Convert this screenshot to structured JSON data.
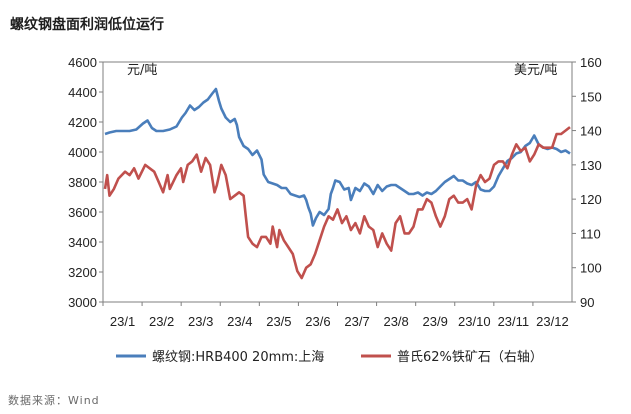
{
  "title": "螺纹钢盘面利润低位运行",
  "source": "数据来源：Wind",
  "chart_data": {
    "type": "line",
    "left_unit": "元/吨",
    "right_unit": "美元/吨",
    "ylim_left": [
      3000,
      4600
    ],
    "ylim_right": [
      90,
      160
    ],
    "y_ticks_left": [
      "3000",
      "3200",
      "3400",
      "3600",
      "3800",
      "4000",
      "4200",
      "4400",
      "4600"
    ],
    "y_ticks_right": [
      "90",
      "100",
      "110",
      "120",
      "130",
      "140",
      "150",
      "160"
    ],
    "x_ticks": [
      "23/1",
      "23/2",
      "23/3",
      "23/4",
      "23/5",
      "23/6",
      "23/7",
      "23/8",
      "23/9",
      "23/10",
      "23/11",
      "23/12"
    ],
    "grid": false,
    "legend_position": "bottom",
    "series": [
      {
        "name": "螺纹钢:HRB400 20mm:上海",
        "axis": "left",
        "color": "#4a7ebb",
        "values": [
          4120,
          4130,
          4140,
          4140,
          4140,
          4150,
          4190,
          4210,
          4160,
          4140,
          4140,
          4150,
          4170,
          4230,
          4260,
          4310,
          4280,
          4300,
          4330,
          4350,
          4390,
          4420,
          4340,
          4290,
          4230,
          4200,
          4220,
          4180,
          4100,
          4040,
          4020,
          3980,
          4010,
          3950,
          3850,
          3800,
          3790,
          3780,
          3760,
          3760,
          3720,
          3710,
          3700,
          3710,
          3680,
          3630,
          3590,
          3510,
          3560,
          3600,
          3580,
          3620,
          3720,
          3760,
          3810,
          3800,
          3750,
          3760,
          3680,
          3760,
          3740,
          3790,
          3770,
          3720,
          3780,
          3740,
          3770,
          3780,
          3780,
          3760,
          3740,
          3720,
          3720,
          3730,
          3710,
          3730,
          3720,
          3740,
          3770,
          3800,
          3820,
          3840,
          3810,
          3810,
          3790,
          3780,
          3800,
          3750,
          3740,
          3740,
          3770,
          3840,
          3890,
          3940,
          3960,
          3990,
          4000,
          4040,
          4060,
          4110,
          4050,
          4030,
          4020,
          4030,
          4020,
          4000,
          4010,
          3990
        ],
        "x": [
          0,
          0.1,
          0.25,
          0.4,
          0.55,
          0.7,
          0.85,
          0.95,
          1.05,
          1.15,
          1.3,
          1.45,
          1.6,
          1.72,
          1.8,
          1.9,
          2.0,
          2.1,
          2.2,
          2.3,
          2.4,
          2.48,
          2.55,
          2.6,
          2.7,
          2.8,
          2.9,
          2.95,
          3.0,
          3.1,
          3.2,
          3.3,
          3.4,
          3.5,
          3.55,
          3.65,
          3.75,
          3.85,
          3.95,
          4.05,
          4.15,
          4.25,
          4.35,
          4.45,
          4.5,
          4.55,
          4.6,
          4.65,
          4.72,
          4.8,
          4.9,
          5.0,
          5.05,
          5.1,
          5.15,
          5.25,
          5.35,
          5.45,
          5.5,
          5.6,
          5.7,
          5.8,
          5.9,
          6.0,
          6.1,
          6.2,
          6.3,
          6.4,
          6.5,
          6.6,
          6.7,
          6.8,
          6.9,
          7.0,
          7.1,
          7.2,
          7.3,
          7.4,
          7.5,
          7.6,
          7.7,
          7.8,
          7.9,
          8.0,
          8.1,
          8.2,
          8.3,
          8.4,
          8.5,
          8.6,
          8.7,
          8.8,
          8.9,
          9.0,
          9.1,
          9.2,
          9.3,
          9.4,
          9.5,
          9.6,
          9.7,
          9.8,
          9.9,
          10.0,
          10.1,
          10.2,
          10.3,
          10.4
        ]
      },
      {
        "name": "普氏62%铁矿石（右轴）",
        "axis": "right",
        "color": "#c0504d",
        "values": [
          123,
          127,
          121,
          123,
          126,
          128,
          127,
          129,
          126,
          130,
          129,
          128,
          125,
          122,
          127,
          123,
          127,
          129,
          125,
          130,
          131,
          133,
          128,
          132,
          130,
          122,
          124,
          130,
          127,
          120,
          121,
          122,
          121,
          115,
          109,
          107,
          106,
          109,
          109,
          107,
          112,
          106,
          111,
          108,
          106,
          104,
          99,
          97,
          100,
          101,
          104,
          108,
          112,
          115,
          114,
          117,
          113,
          115,
          111,
          113,
          110,
          115,
          112,
          111,
          106,
          110,
          107,
          105,
          113,
          115,
          110,
          110,
          112,
          117,
          117,
          120,
          119,
          115,
          112,
          115,
          120,
          121,
          119,
          119,
          120,
          117,
          124,
          127,
          125,
          126,
          130,
          131,
          131,
          129,
          133,
          136,
          134,
          135,
          131,
          133,
          136,
          135,
          135,
          135,
          139,
          139,
          140,
          141
        ],
        "x": [
          0,
          0.05,
          0.1,
          0.2,
          0.3,
          0.45,
          0.55,
          0.65,
          0.75,
          0.9,
          1.0,
          1.1,
          1.2,
          1.3,
          1.4,
          1.45,
          1.6,
          1.7,
          1.75,
          1.85,
          1.95,
          2.05,
          2.15,
          2.25,
          2.35,
          2.45,
          2.5,
          2.6,
          2.7,
          2.8,
          2.9,
          3.0,
          3.1,
          3.15,
          3.2,
          3.3,
          3.4,
          3.5,
          3.6,
          3.7,
          3.75,
          3.85,
          3.9,
          4.0,
          4.1,
          4.2,
          4.3,
          4.4,
          4.5,
          4.6,
          4.7,
          4.8,
          4.9,
          5.0,
          5.1,
          5.2,
          5.3,
          5.4,
          5.5,
          5.6,
          5.7,
          5.8,
          5.9,
          6.0,
          6.1,
          6.2,
          6.3,
          6.4,
          6.5,
          6.6,
          6.7,
          6.8,
          6.9,
          7.0,
          7.1,
          7.2,
          7.3,
          7.4,
          7.5,
          7.6,
          7.7,
          7.8,
          7.9,
          8.0,
          8.1,
          8.2,
          8.3,
          8.4,
          8.5,
          8.6,
          8.7,
          8.8,
          8.9,
          9.0,
          9.1,
          9.2,
          9.3,
          9.4,
          9.5,
          9.6,
          9.7,
          9.8,
          9.9,
          10.0,
          10.1,
          10.2,
          10.3,
          10.4
        ]
      }
    ]
  }
}
